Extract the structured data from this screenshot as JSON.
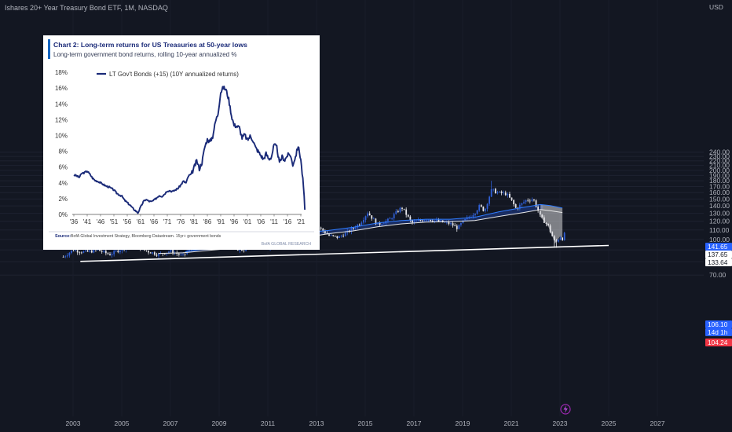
{
  "header": {
    "symbol_line": "Ishares 20+ Year Treasury Bond ETF, 1M, NASDAQ"
  },
  "price_axis": {
    "currency": "USD",
    "ticks": [
      "240.00",
      "230.00",
      "220.00",
      "210.00",
      "200.00",
      "190.00",
      "180.00",
      "170.00",
      "160.00",
      "150.00",
      "140.00",
      "130.00",
      "120.00",
      "110.00",
      "100.00",
      "90.00",
      "80.00",
      "70.00"
    ]
  },
  "price_badges": [
    {
      "value": "141.65",
      "color": "#2962ff",
      "text_color": "#ffffff"
    },
    {
      "value": "137.65",
      "color": "#ffffff",
      "text_color": "#131722"
    },
    {
      "value": "133.64",
      "color": "#ffffff",
      "text_color": "#131722"
    },
    {
      "value": "106.10",
      "color": "#2962ff",
      "text_color": "#ffffff"
    },
    {
      "value": "14d 1h",
      "color": "#2962ff",
      "text_color": "#ffffff"
    },
    {
      "value": "104.24",
      "color": "#f23645",
      "text_color": "#ffffff"
    }
  ],
  "time_axis": {
    "ticks": [
      "2003",
      "2005",
      "2007",
      "2009",
      "2011",
      "2013",
      "2015",
      "2017",
      "2019",
      "2021",
      "2023",
      "2025",
      "2027"
    ]
  },
  "lightning_icon": "lightning-icon",
  "chart_data": [
    {
      "type": "candlestick",
      "title": "",
      "x_unit": "year",
      "y_unit": "USD",
      "ylim": [
        67,
        245
      ],
      "xlim": [
        2002.5,
        2027.7
      ],
      "log_scale": true,
      "colors": {
        "bull": "#2f5fd6",
        "bear": "#e6e6ea",
        "band_fill_up": "#2962ff",
        "band_fill_down": "#ffffff",
        "fast_ma": "#2f7cff",
        "slow_ma": "#e8e8e8",
        "trendline": "#ffffff"
      },
      "price_path": [
        [
          2002.6,
          84
        ],
        [
          2003.0,
          90
        ],
        [
          2003.5,
          88
        ],
        [
          2004.0,
          90
        ],
        [
          2004.5,
          86
        ],
        [
          2005.0,
          91
        ],
        [
          2005.5,
          95
        ],
        [
          2005.9,
          90
        ],
        [
          2006.5,
          86
        ],
        [
          2007.0,
          89
        ],
        [
          2007.5,
          85
        ],
        [
          2008.0,
          94
        ],
        [
          2008.5,
          95
        ],
        [
          2008.85,
          100
        ],
        [
          2008.95,
          120
        ],
        [
          2009.2,
          105
        ],
        [
          2009.5,
          92
        ],
        [
          2010.0,
          90
        ],
        [
          2010.5,
          100
        ],
        [
          2010.8,
          106
        ],
        [
          2011.0,
          92
        ],
        [
          2011.5,
          95
        ],
        [
          2011.8,
          110
        ],
        [
          2012.0,
          115
        ],
        [
          2012.4,
          124
        ],
        [
          2012.6,
          120
        ],
        [
          2013.0,
          115
        ],
        [
          2013.5,
          104
        ],
        [
          2013.9,
          102
        ],
        [
          2014.3,
          108
        ],
        [
          2014.8,
          118
        ],
        [
          2015.1,
          131
        ],
        [
          2015.5,
          116
        ],
        [
          2016.0,
          122
        ],
        [
          2016.5,
          138
        ],
        [
          2016.9,
          118
        ],
        [
          2017.5,
          123
        ],
        [
          2018.0,
          120
        ],
        [
          2018.5,
          117
        ],
        [
          2018.8,
          112
        ],
        [
          2019.0,
          119
        ],
        [
          2019.5,
          131
        ],
        [
          2019.7,
          140
        ],
        [
          2019.9,
          133
        ],
        [
          2020.2,
          165
        ],
        [
          2020.4,
          160
        ],
        [
          2020.8,
          158
        ],
        [
          2021.0,
          148
        ],
        [
          2021.2,
          136
        ],
        [
          2021.6,
          148
        ],
        [
          2021.9,
          150
        ],
        [
          2022.0,
          142
        ],
        [
          2022.2,
          125
        ],
        [
          2022.5,
          115
        ],
        [
          2022.8,
          96
        ],
        [
          2023.0,
          103
        ],
        [
          2023.1,
          101
        ],
        [
          2023.2,
          106
        ]
      ],
      "moving_averages": [
        {
          "points": [
            [
              2007.6,
              88.5
            ],
            [
              2008.5,
              91.5
            ],
            [
              2009.5,
              94
            ],
            [
              2010.5,
              96
            ],
            [
              2011.5,
              101
            ],
            [
              2012.5,
              107
            ],
            [
              2013.5,
              109.5
            ],
            [
              2014.5,
              113
            ],
            [
              2015.5,
              118
            ],
            [
              2016.5,
              121
            ],
            [
              2017.5,
              122.5
            ],
            [
              2018.5,
              122.5
            ],
            [
              2019.5,
              125
            ],
            [
              2020.5,
              132
            ],
            [
              2021.5,
              138
            ],
            [
              2022.2,
              142
            ],
            [
              2022.6,
              140.5
            ],
            [
              2023.1,
              137
            ]
          ]
        },
        {
          "points": [
            [
              2006.5,
              87
            ],
            [
              2007.5,
              87.5
            ],
            [
              2008.5,
              89.5
            ],
            [
              2009.5,
              91.5
            ],
            [
              2010.5,
              93.5
            ],
            [
              2011.5,
              97
            ],
            [
              2012.5,
              102
            ],
            [
              2013.5,
              106
            ],
            [
              2014.5,
              109
            ],
            [
              2015.5,
              113.5
            ],
            [
              2016.5,
              117
            ],
            [
              2017.5,
              119
            ],
            [
              2018.5,
              119.5
            ],
            [
              2019.5,
              121
            ],
            [
              2020.5,
              126
            ],
            [
              2021.5,
              131
            ],
            [
              2022.2,
              135
            ],
            [
              2022.6,
              133.5
            ],
            [
              2023.1,
              131
            ]
          ]
        }
      ],
      "trendline": {
        "from": [
          2003.3,
          80.3
        ],
        "to": [
          2025.0,
          94.2
        ]
      },
      "current_price": 106.1,
      "countdown": "14d 1h",
      "levels": [
        141.65,
        137.65,
        133.64,
        106.1,
        104.24
      ]
    },
    {
      "type": "line",
      "title": "Chart 2: Long-term returns for US Treasuries at 50-year lows",
      "subtitle": "Long-term government bond returns, rolling 10-year annualized %",
      "legend": "LT Gov't Bonds (+15) (10Y annualized returns)",
      "legend_position": "top-left",
      "source_label": "Source:",
      "source": "BofA Global Investment Strategy, Bloomberg Datastream. 15yr+ government bonds",
      "watermark": "BofA GLOBAL RESEARCH",
      "x_ticks": [
        "'36",
        "'41",
        "'46",
        "'51",
        "'56",
        "'61",
        "'66",
        "'71",
        "'76",
        "'81",
        "'86",
        "'91",
        "'96",
        "'01",
        "'06",
        "'11",
        "'16",
        "'21"
      ],
      "y_ticks": [
        "0%",
        "2%",
        "4%",
        "6%",
        "8%",
        "10%",
        "12%",
        "14%",
        "16%",
        "18%"
      ],
      "ylim": [
        0,
        18
      ],
      "xlim": [
        1936,
        2023
      ],
      "series": [
        {
          "name": "LT Gov't Bonds (+15) (10Y annualized returns)",
          "color": "#1a2a78",
          "points": [
            [
              1936,
              5
            ],
            [
              1937,
              4.9
            ],
            [
              1938,
              4.7
            ],
            [
              1939,
              5.2
            ],
            [
              1940,
              5.3
            ],
            [
              1941,
              5.5
            ],
            [
              1942,
              5.1
            ],
            [
              1943,
              4.6
            ],
            [
              1944,
              4.3
            ],
            [
              1945,
              4.2
            ],
            [
              1946,
              4.0
            ],
            [
              1947,
              3.8
            ],
            [
              1948,
              3.6
            ],
            [
              1949,
              3.5
            ],
            [
              1950,
              3.3
            ],
            [
              1951,
              3.1
            ],
            [
              1952,
              2.7
            ],
            [
              1953,
              2.5
            ],
            [
              1954,
              2.3
            ],
            [
              1955,
              1.8
            ],
            [
              1956,
              1.5
            ],
            [
              1957,
              1.2
            ],
            [
              1958,
              0.8
            ],
            [
              1959,
              0.5
            ],
            [
              1960,
              0.2
            ],
            [
              1961,
              0.9
            ],
            [
              1962,
              1.6
            ],
            [
              1963,
              1.9
            ],
            [
              1964,
              1.7
            ],
            [
              1965,
              1.6
            ],
            [
              1966,
              1.8
            ],
            [
              1967,
              2.1
            ],
            [
              1968,
              2.4
            ],
            [
              1969,
              2.3
            ],
            [
              1970,
              2.6
            ],
            [
              1971,
              3.0
            ],
            [
              1972,
              3.0
            ],
            [
              1973,
              2.9
            ],
            [
              1974,
              3.1
            ],
            [
              1975,
              3.3
            ],
            [
              1976,
              3.7
            ],
            [
              1977,
              4.2
            ],
            [
              1978,
              4.0
            ],
            [
              1979,
              4.9
            ],
            [
              1980,
              5.1
            ],
            [
              1981,
              5.9
            ],
            [
              1982,
              6.8
            ],
            [
              1983,
              5.8
            ],
            [
              1984,
              6.6
            ],
            [
              1985,
              8.5
            ],
            [
              1986,
              9.5
            ],
            [
              1987,
              9.2
            ],
            [
              1988,
              9.9
            ],
            [
              1989,
              11.7
            ],
            [
              1990,
              12.8
            ],
            [
              1991,
              15.5
            ],
            [
              1992,
              16.1
            ],
            [
              1993,
              15.8
            ],
            [
              1994,
              14.6
            ],
            [
              1995,
              12.6
            ],
            [
              1996,
              11.3
            ],
            [
              1997,
              11.2
            ],
            [
              1998,
              11.0
            ],
            [
              1999,
              9.7
            ],
            [
              2000,
              10.1
            ],
            [
              2001,
              9.4
            ],
            [
              2002,
              9.9
            ],
            [
              2003,
              9.5
            ],
            [
              2004,
              8.5
            ],
            [
              2005,
              8.0
            ],
            [
              2006,
              7.5
            ],
            [
              2007,
              7.0
            ],
            [
              2008,
              7.7
            ],
            [
              2009,
              7.0
            ],
            [
              2010,
              7.3
            ],
            [
              2011,
              8.8
            ],
            [
              2012,
              8.5
            ],
            [
              2013,
              6.5
            ],
            [
              2014,
              7.3
            ],
            [
              2015,
              6.9
            ],
            [
              2016,
              7.5
            ],
            [
              2017,
              7.6
            ],
            [
              2018,
              6.3
            ],
            [
              2019,
              7.3
            ],
            [
              2020,
              8.7
            ],
            [
              2021,
              7.0
            ],
            [
              2022,
              3.5
            ],
            [
              2022.5,
              0.6
            ]
          ]
        }
      ]
    }
  ]
}
